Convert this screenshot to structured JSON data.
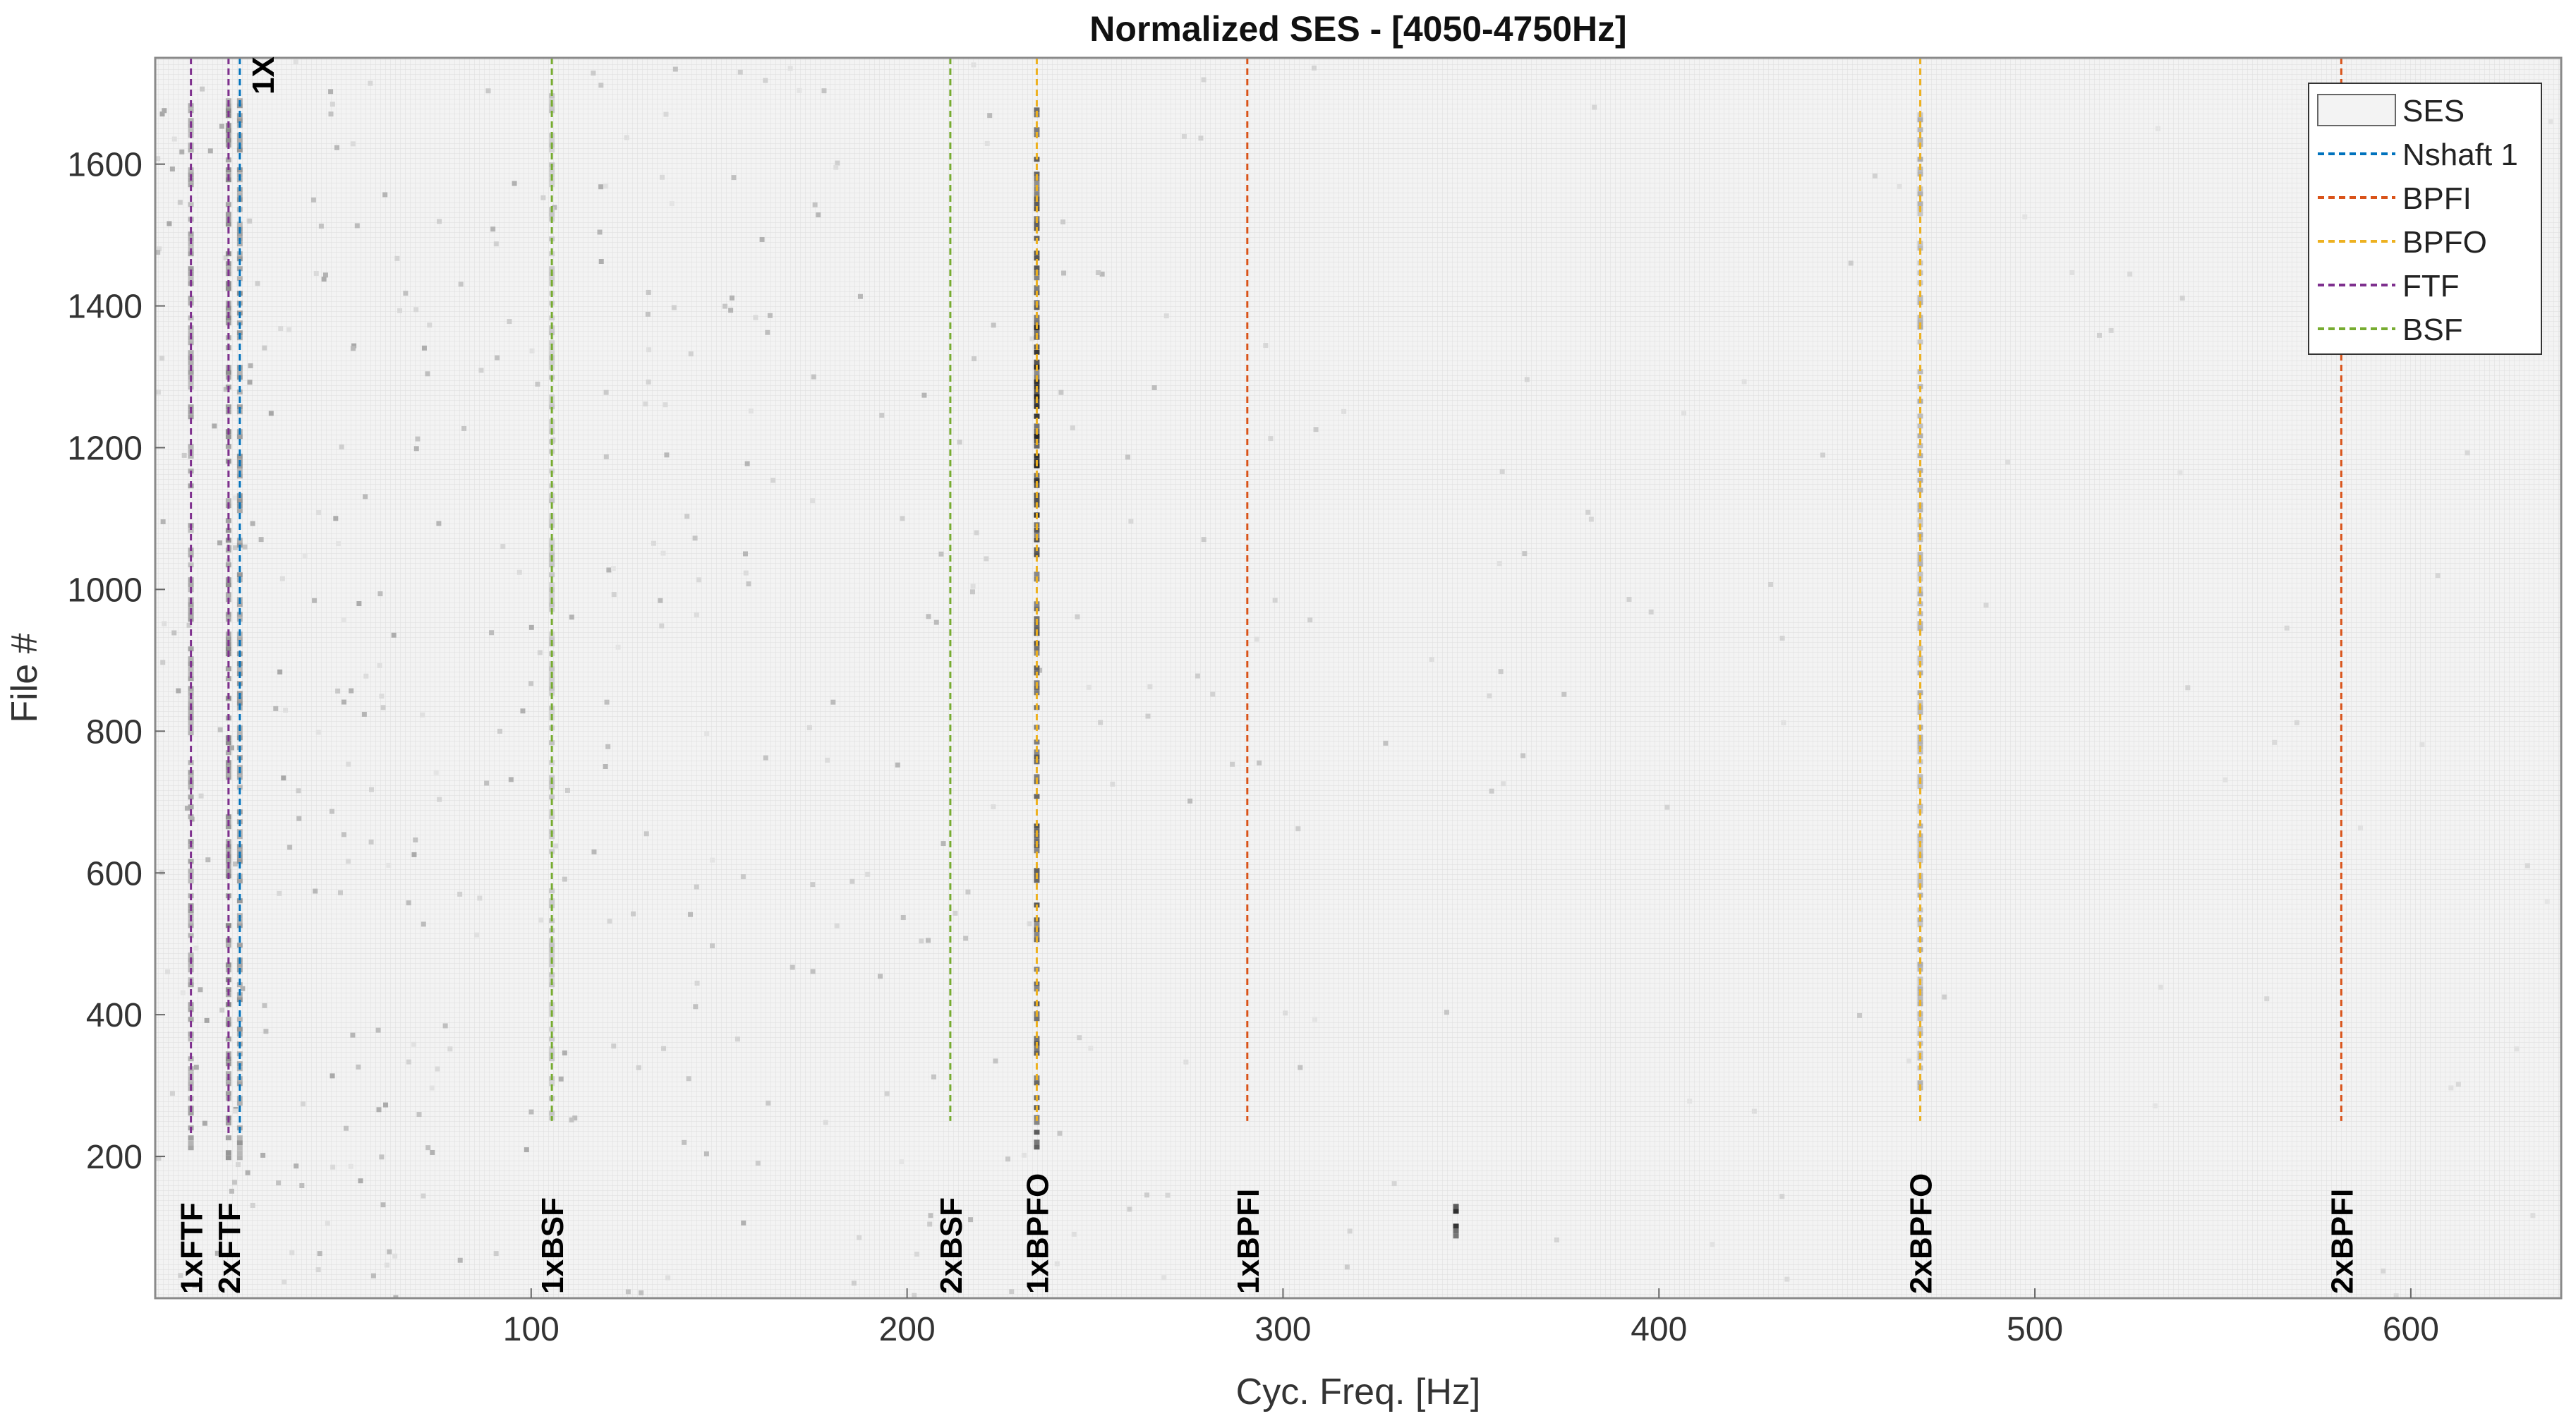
{
  "chart_data": {
    "type": "heatmap",
    "title": "Normalized SES - [4050-4750Hz]",
    "xlabel": "Cyc. Freq. [Hz]",
    "ylabel": "File #",
    "xlim": [
      0,
      640
    ],
    "ylim": [
      0,
      1750
    ],
    "xticks": [
      "100",
      "200",
      "300",
      "400",
      "500",
      "600"
    ],
    "yticks": [
      "200",
      "400",
      "600",
      "800",
      "1000",
      "1200",
      "1400",
      "1600"
    ],
    "grid": true,
    "colormap": "gray-reversed",
    "legend": {
      "placement": "top-right",
      "entries": [
        {
          "label": "SES",
          "style": "box"
        },
        {
          "label": "Nshaft 1",
          "color": "#0072BD",
          "style": "dashed"
        },
        {
          "label": "BPFI",
          "color": "#D95319",
          "style": "dashed"
        },
        {
          "label": "BPFO",
          "color": "#EDB120",
          "style": "dashed"
        },
        {
          "label": "FTF",
          "color": "#7E2F8E",
          "style": "dashed"
        },
        {
          "label": "BSF",
          "color": "#77AC30",
          "style": "dashed"
        }
      ]
    },
    "markers": [
      {
        "label": "1xFTF",
        "x": 9.5,
        "color": "#7E2F8E",
        "y_from": 230,
        "y_to": 1750
      },
      {
        "label": "2xFTF",
        "x": 19.5,
        "color": "#7E2F8E",
        "y_from": 230,
        "y_to": 1750
      },
      {
        "label": "1X",
        "x": 22.5,
        "color": "#0072BD",
        "y_from": 230,
        "y_to": 1750
      },
      {
        "label": "1xBSF",
        "x": 105.5,
        "color": "#77AC30",
        "y_from": 250,
        "y_to": 1750
      },
      {
        "label": "2xBSF",
        "x": 211.5,
        "color": "#77AC30",
        "y_from": 250,
        "y_to": 1750
      },
      {
        "label": "1xBPFO",
        "x": 234.5,
        "color": "#EDB120",
        "y_from": 250,
        "y_to": 1750
      },
      {
        "label": "1xBPFI",
        "x": 290.5,
        "color": "#D95319",
        "y_from": 250,
        "y_to": 1750
      },
      {
        "label": "2xBPFO",
        "x": 469.5,
        "color": "#EDB120",
        "y_from": 250,
        "y_to": 1750
      },
      {
        "label": "2xBPFI",
        "x": 581.5,
        "color": "#D95319",
        "y_from": 250,
        "y_to": 1750
      }
    ],
    "intensity_features": [
      {
        "x": 9.5,
        "y_from": 200,
        "y_to": 1700,
        "level": 0.35
      },
      {
        "x": 19.5,
        "y_from": 200,
        "y_to": 1700,
        "level": 0.45
      },
      {
        "x": 22.5,
        "y_from": 200,
        "y_to": 1700,
        "level": 0.4
      },
      {
        "x": 234.5,
        "y_from": 200,
        "y_to": 1680,
        "level": 0.7
      },
      {
        "x": 234.5,
        "y_from": 1050,
        "y_to": 1380,
        "level": 0.95
      },
      {
        "x": 469.5,
        "y_from": 300,
        "y_to": 1680,
        "level": 0.3
      },
      {
        "x": 105.5,
        "y_from": 250,
        "y_to": 1700,
        "level": 0.2
      },
      {
        "x": 346,
        "y_from": 90,
        "y_to": 140,
        "level": 0.9
      }
    ]
  }
}
